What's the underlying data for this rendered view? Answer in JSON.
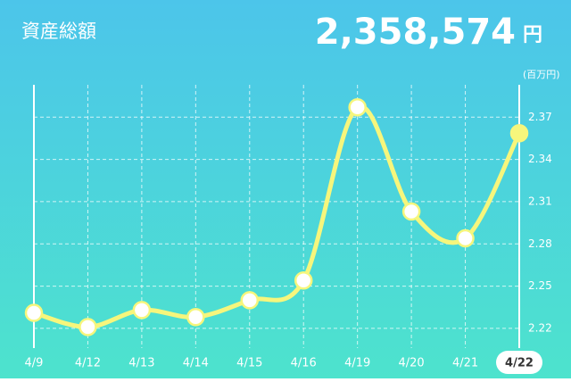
{
  "chart_data": {
    "type": "line",
    "title": "資産総額",
    "total": "2,358,574",
    "total_unit": "円",
    "y_unit": "(百万円)",
    "categories": [
      "4/9",
      "4/12",
      "4/13",
      "4/14",
      "4/15",
      "4/16",
      "4/19",
      "4/20",
      "4/21",
      "4/22"
    ],
    "series": [
      {
        "name": "資産総額",
        "color": "#f6f67c",
        "values": [
          2.231,
          2.221,
          2.233,
          2.228,
          2.24,
          2.254,
          2.377,
          2.303,
          2.284,
          2.3586
        ]
      }
    ],
    "ylim": [
      2.206,
      2.393
    ],
    "yticks": [
      2.22,
      2.25,
      2.28,
      2.31,
      2.34,
      2.37
    ],
    "grid": true,
    "selected": 9
  }
}
